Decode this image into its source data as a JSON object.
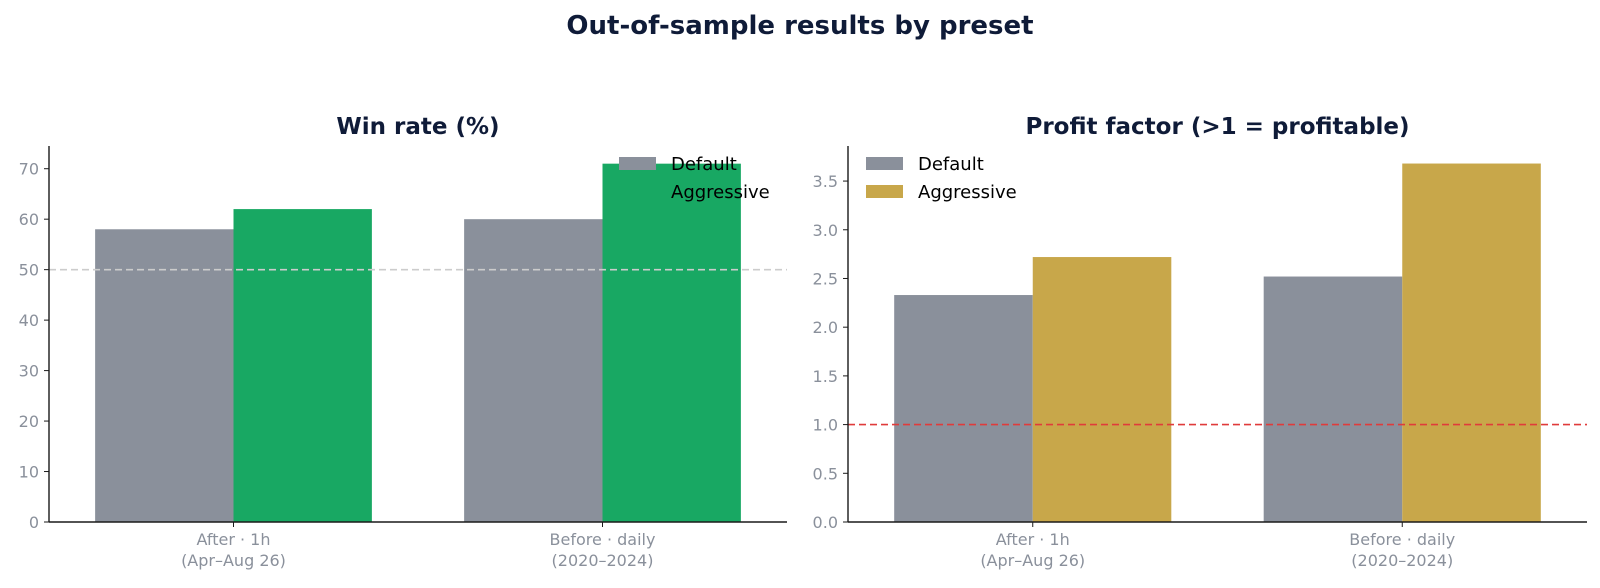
{
  "title": "Out-of-sample results by preset",
  "colors": {
    "default": "#8a909b",
    "aggressive_winrate": "#18a863",
    "aggressive_pf": "#c8a74a",
    "ref_line_winrate": "#cccccc",
    "ref_line_pf": "#e03b3b",
    "title_text": "#0f1b38",
    "tick_text": "#8a909b"
  },
  "chart_data": [
    {
      "type": "bar",
      "title": "Win rate (%)",
      "categories": [
        [
          "After · 1h",
          "(Apr–Aug 26)"
        ],
        [
          "Before · daily",
          "(2020–2024)"
        ]
      ],
      "series": [
        {
          "name": "Default",
          "values": [
            58,
            60
          ],
          "color": "#8a909b"
        },
        {
          "name": "Aggressive",
          "values": [
            62,
            71
          ],
          "color": "#18a863"
        }
      ],
      "ylim": [
        0,
        74.5
      ],
      "yticks": [
        0,
        10,
        20,
        30,
        40,
        50,
        60,
        70
      ],
      "yticklabels": [
        "0",
        "10",
        "20",
        "30",
        "40",
        "50",
        "60",
        "70"
      ],
      "reference_line": {
        "value": 50,
        "style": "dashed",
        "color": "#cccccc"
      },
      "legend": {
        "placement": "top-right",
        "frame": false
      },
      "xlabel": "",
      "ylabel": ""
    },
    {
      "type": "bar",
      "title": "Profit factor (>1 = profitable)",
      "categories": [
        [
          "After · 1h",
          "(Apr–Aug 26)"
        ],
        [
          "Before · daily",
          "(2020–2024)"
        ]
      ],
      "series": [
        {
          "name": "Default",
          "values": [
            2.33,
            2.52
          ],
          "color": "#8a909b"
        },
        {
          "name": "Aggressive",
          "values": [
            2.72,
            3.68
          ],
          "color": "#c8a74a"
        }
      ],
      "ylim": [
        0,
        3.86
      ],
      "yticks": [
        0,
        0.5,
        1,
        1.5,
        2,
        2.5,
        3,
        3.5
      ],
      "yticklabels": [
        "0.0",
        "0.5",
        "1.0",
        "1.5",
        "2.0",
        "2.5",
        "3.0",
        "3.5"
      ],
      "reference_line": {
        "value": 1.0,
        "style": "dashed",
        "color": "#e03b3b"
      },
      "legend": {
        "placement": "top-left",
        "frame": false
      },
      "xlabel": "",
      "ylabel": ""
    }
  ]
}
